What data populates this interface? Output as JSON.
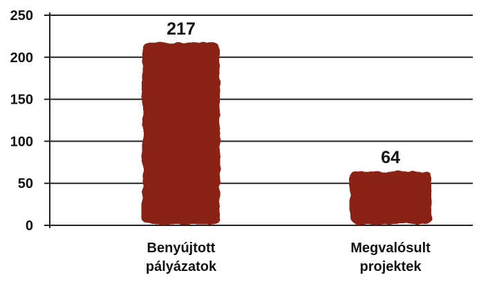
{
  "chart_data": {
    "type": "bar",
    "categories": [
      "Benyújtott pályázatok",
      "Megvalósult projektek"
    ],
    "category_label_lines": [
      [
        "Benyújtott",
        "pályázatok"
      ],
      [
        "Megvalósult",
        "projektek"
      ]
    ],
    "values": [
      217,
      64
    ],
    "data_labels": [
      "217",
      "64"
    ],
    "yticks": [
      0,
      50,
      100,
      150,
      200,
      250
    ],
    "ylim": [
      0,
      250
    ],
    "grid": true,
    "bar_color": "#8b2318",
    "grid_color": "#222222",
    "title": "",
    "xlabel": "",
    "ylabel": ""
  }
}
